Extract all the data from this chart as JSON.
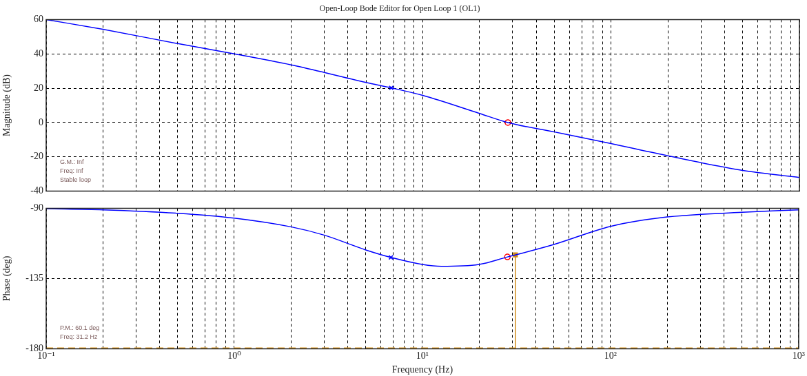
{
  "chart_data": [
    {
      "type": "line",
      "title": "Open-Loop Bode Editor for Open Loop 1 (OL1)",
      "ylabel": "Magnitude (dB)",
      "log": "x",
      "grid": true,
      "legend": false,
      "tick_labels": "y",
      "xlim": [
        0.1,
        1000
      ],
      "ylim": [
        -40,
        60
      ],
      "yticks": [
        -40,
        -20,
        0,
        20,
        40,
        60
      ],
      "xticks": [
        {
          "value": 0.1,
          "label": null
        },
        {
          "value": 0.2,
          "label": null
        },
        {
          "value": 0.3,
          "label": null
        },
        {
          "value": 0.4,
          "label": null
        },
        {
          "value": 0.5,
          "label": null
        },
        {
          "value": 0.6,
          "label": null
        },
        {
          "value": 0.7,
          "label": null
        },
        {
          "value": 0.8,
          "label": null
        },
        {
          "value": 0.9,
          "label": null
        },
        {
          "value": 1,
          "label": null
        },
        {
          "value": 2,
          "label": null
        },
        {
          "value": 3,
          "label": null
        },
        {
          "value": 4,
          "label": null
        },
        {
          "value": 5,
          "label": null
        },
        {
          "value": 6,
          "label": null
        },
        {
          "value": 7,
          "label": null
        },
        {
          "value": 8,
          "label": null
        },
        {
          "value": 9,
          "label": null
        },
        {
          "value": 10,
          "label": null
        },
        {
          "value": 20,
          "label": null
        },
        {
          "value": 30,
          "label": null
        },
        {
          "value": 40,
          "label": null
        },
        {
          "value": 50,
          "label": null
        },
        {
          "value": 60,
          "label": null
        },
        {
          "value": 70,
          "label": null
        },
        {
          "value": 80,
          "label": null
        },
        {
          "value": 90,
          "label": null
        },
        {
          "value": 100,
          "label": null
        },
        {
          "value": 200,
          "label": null
        },
        {
          "value": 300,
          "label": null
        },
        {
          "value": 400,
          "label": null
        },
        {
          "value": 500,
          "label": null
        },
        {
          "value": 600,
          "label": null
        },
        {
          "value": 700,
          "label": null
        },
        {
          "value": 800,
          "label": null
        },
        {
          "value": 900,
          "label": null
        },
        {
          "value": 1000,
          "label": null
        }
      ],
      "series": [
        {
          "type": "line",
          "color": "#0000ff",
          "marker": "none",
          "x": [
            0.1,
            0.2,
            0.5,
            1,
            2,
            3,
            5,
            6.8,
            10,
            20,
            28.3,
            50,
            100,
            200,
            500,
            1000
          ],
          "values": [
            60,
            54.3,
            46,
            40,
            33.6,
            29.2,
            23.3,
            20.2,
            15.8,
            5.3,
            0,
            -5.5,
            -12.3,
            -19.4,
            -27.9,
            -32
          ]
        },
        {
          "type": "scatter",
          "color": "#0000ff",
          "marker": "cross",
          "x": [
            6.8
          ],
          "values": [
            20.2
          ]
        },
        {
          "type": "scatter",
          "color": "#ff0000",
          "marker": "circle",
          "x": [
            28.3
          ],
          "values": [
            0
          ]
        }
      ],
      "annotations": [
        "G.M.: Inf",
        "Freq: Inf",
        "Stable loop"
      ]
    },
    {
      "type": "line",
      "xlabel": "Frequency (Hz)",
      "ylabel": "Phase (deg)",
      "log": "x",
      "grid": true,
      "legend": false,
      "xlim": [
        0.1,
        1000
      ],
      "ylim": [
        -180,
        -90
      ],
      "yticks": [
        -180,
        -135,
        -90
      ],
      "xticks": [
        {
          "value": 0.1,
          "label": "10⁻¹"
        },
        {
          "value": 0.2,
          "label": null
        },
        {
          "value": 0.3,
          "label": null
        },
        {
          "value": 0.4,
          "label": null
        },
        {
          "value": 0.5,
          "label": null
        },
        {
          "value": 0.6,
          "label": null
        },
        {
          "value": 0.7,
          "label": null
        },
        {
          "value": 0.8,
          "label": null
        },
        {
          "value": 0.9,
          "label": null
        },
        {
          "value": 1,
          "label": "10⁰"
        },
        {
          "value": 2,
          "label": null
        },
        {
          "value": 3,
          "label": null
        },
        {
          "value": 4,
          "label": null
        },
        {
          "value": 5,
          "label": null
        },
        {
          "value": 6,
          "label": null
        },
        {
          "value": 7,
          "label": null
        },
        {
          "value": 8,
          "label": null
        },
        {
          "value": 9,
          "label": null
        },
        {
          "value": 10,
          "label": "10¹"
        },
        {
          "value": 20,
          "label": null
        },
        {
          "value": 30,
          "label": null
        },
        {
          "value": 40,
          "label": null
        },
        {
          "value": 50,
          "label": null
        },
        {
          "value": 60,
          "label": null
        },
        {
          "value": 70,
          "label": null
        },
        {
          "value": 80,
          "label": null
        },
        {
          "value": 90,
          "label": null
        },
        {
          "value": 100,
          "label": "10²"
        },
        {
          "value": 200,
          "label": null
        },
        {
          "value": 300,
          "label": null
        },
        {
          "value": 400,
          "label": null
        },
        {
          "value": 500,
          "label": null
        },
        {
          "value": 600,
          "label": null
        },
        {
          "value": 700,
          "label": null
        },
        {
          "value": 800,
          "label": null
        },
        {
          "value": 900,
          "label": null
        },
        {
          "value": 1000,
          "label": "10³"
        }
      ],
      "series": [
        {
          "type": "line",
          "color": "#0000ff",
          "marker": "none",
          "x": [
            0.1,
            0.2,
            0.5,
            1,
            2,
            3,
            5,
            6.8,
            10,
            12.6,
            20,
            28.3,
            31.2,
            50,
            100,
            200,
            500,
            1000
          ],
          "values": [
            -90.3,
            -91,
            -93.2,
            -96.3,
            -101.9,
            -107.2,
            -116.7,
            -121.5,
            -126,
            -127.2,
            -126,
            -121.2,
            -119.9,
            -113.2,
            -101.6,
            -95.6,
            -92.6,
            -91
          ]
        },
        {
          "type": "line",
          "color": "#d08c1c",
          "marker": "none",
          "x": [
            31.2,
            31.2
          ],
          "values": [
            -119.9,
            -180
          ]
        },
        {
          "type": "scatter",
          "color": "#0000ff",
          "marker": "cross",
          "x": [
            6.8
          ],
          "values": [
            -121.5
          ]
        },
        {
          "type": "scatter",
          "color": "#ff0000",
          "marker": "circle",
          "x": [
            28.3
          ],
          "values": [
            -121.2
          ]
        },
        {
          "type": "scatter",
          "color": "#d08c1c",
          "marker": "square",
          "x": [
            31.2
          ],
          "values": [
            -119.9
          ]
        }
      ],
      "ref_lines": [
        {
          "axis": "y",
          "value": -180,
          "color": "#e0a030",
          "line_style": "dashed"
        }
      ],
      "annotations": [
        "P.M.: 60.1 deg",
        "Freq: 31.2 Hz"
      ]
    }
  ]
}
